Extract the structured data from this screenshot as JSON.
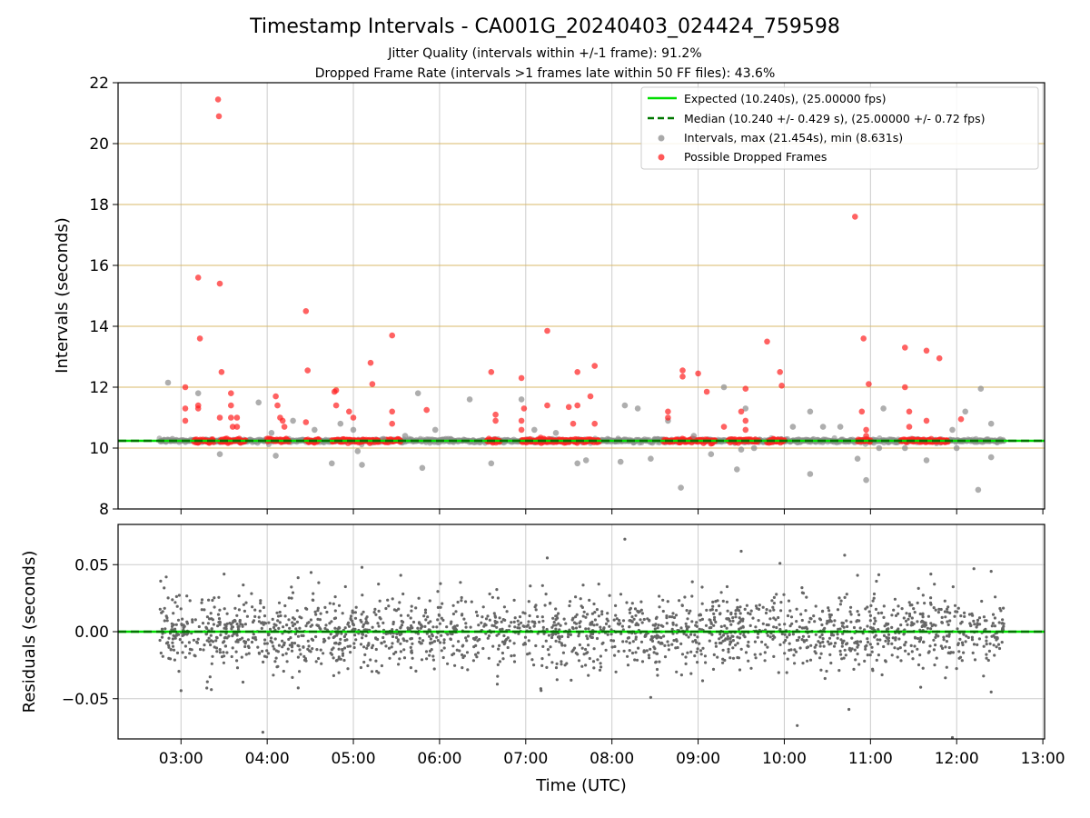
{
  "title": "Timestamp Intervals - CA001G_20240403_024424_759598",
  "subtitle_1": "Jitter Quality (intervals within +/-1 frame): 91.2%",
  "subtitle_2": "Dropped Frame Rate (intervals >1 frames late within 50 FF files): 43.6%",
  "colors": {
    "expected": "#00dd00",
    "median": "#007700",
    "intervals": "#8c8c8c",
    "dropped": "#ff2020",
    "frame_grid": "#d8b96a",
    "grid": "#cccccc",
    "residuals": "#666666"
  },
  "chart_data": [
    {
      "type": "scatter",
      "ylabel": "Intervals (seconds)",
      "ylim": [
        8,
        22
      ],
      "xlim": [
        2.27,
        13.02
      ],
      "yticks": [
        "8",
        "10",
        "12",
        "14",
        "16",
        "18",
        "20",
        "22"
      ],
      "grid": true,
      "legend_position": "top-right",
      "legend": [
        "Expected (10.240s), (25.00000 fps)",
        "Median (10.240 +/- 0.429 s), (25.00000 +/- 0.72 fps)",
        "Intervals, max (21.454s), min (8.631s)",
        "Possible Dropped Frames"
      ],
      "expected_value": 10.24,
      "median_value": 10.24,
      "time_range_hours": [
        2.75,
        12.55
      ],
      "frame_levels": [
        10.0,
        10.24,
        12.0,
        14.0,
        16.0,
        18.0,
        20.0,
        22.0
      ],
      "series": [
        {
          "name": "Intervals, max (21.454s), min (8.631s)",
          "points": [
            [
              2.8,
              10.25
            ],
            [
              2.85,
              12.15
            ],
            [
              2.9,
              10.3
            ],
            [
              3.2,
              11.8
            ],
            [
              3.45,
              9.8
            ],
            [
              3.9,
              11.5
            ],
            [
              4.05,
              10.5
            ],
            [
              4.1,
              9.75
            ],
            [
              4.3,
              10.9
            ],
            [
              4.55,
              10.6
            ],
            [
              4.75,
              9.5
            ],
            [
              4.85,
              10.8
            ],
            [
              5.0,
              10.6
            ],
            [
              5.05,
              9.9
            ],
            [
              5.1,
              9.45
            ],
            [
              5.35,
              10.3
            ],
            [
              5.6,
              10.4
            ],
            [
              5.75,
              11.8
            ],
            [
              5.8,
              9.35
            ],
            [
              5.95,
              10.6
            ],
            [
              6.1,
              10.3
            ],
            [
              6.35,
              11.6
            ],
            [
              6.6,
              9.5
            ],
            [
              6.95,
              11.6
            ],
            [
              7.1,
              10.6
            ],
            [
              7.35,
              10.5
            ],
            [
              7.6,
              9.5
            ],
            [
              7.7,
              9.6
            ],
            [
              7.95,
              10.3
            ],
            [
              8.1,
              9.55
            ],
            [
              8.15,
              11.4
            ],
            [
              8.3,
              11.3
            ],
            [
              8.45,
              9.65
            ],
            [
              8.65,
              10.9
            ],
            [
              8.8,
              8.7
            ],
            [
              8.95,
              10.4
            ],
            [
              9.15,
              9.8
            ],
            [
              9.3,
              12.0
            ],
            [
              9.45,
              9.3
            ],
            [
              9.5,
              9.95
            ],
            [
              9.55,
              11.3
            ],
            [
              9.65,
              10.0
            ],
            [
              10.1,
              10.7
            ],
            [
              10.3,
              9.15
            ],
            [
              10.3,
              11.2
            ],
            [
              10.45,
              10.7
            ],
            [
              10.65,
              10.7
            ],
            [
              10.85,
              9.65
            ],
            [
              10.95,
              8.95
            ],
            [
              11.1,
              10.0
            ],
            [
              11.15,
              11.3
            ],
            [
              11.4,
              10.0
            ],
            [
              11.65,
              9.6
            ],
            [
              11.95,
              10.6
            ],
            [
              12.0,
              10.0
            ],
            [
              12.1,
              11.2
            ],
            [
              12.25,
              8.63
            ],
            [
              12.28,
              11.95
            ],
            [
              12.4,
              9.7
            ],
            [
              12.4,
              10.8
            ]
          ]
        },
        {
          "name": "Possible Dropped Frames",
          "points": [
            [
              3.05,
              12.0
            ],
            [
              3.05,
              10.9
            ],
            [
              3.05,
              11.3
            ],
            [
              3.2,
              11.4
            ],
            [
              3.2,
              11.3
            ],
            [
              3.2,
              15.6
            ],
            [
              3.22,
              13.6
            ],
            [
              3.43,
              21.45
            ],
            [
              3.44,
              20.9
            ],
            [
              3.45,
              15.4
            ],
            [
              3.47,
              12.5
            ],
            [
              3.45,
              11.0
            ],
            [
              3.58,
              11.8
            ],
            [
              3.58,
              11.4
            ],
            [
              3.6,
              10.7
            ],
            [
              3.58,
              11.0
            ],
            [
              3.65,
              10.7
            ],
            [
              3.65,
              11.0
            ],
            [
              4.1,
              11.7
            ],
            [
              4.12,
              11.4
            ],
            [
              4.15,
              11.0
            ],
            [
              4.18,
              10.9
            ],
            [
              4.2,
              10.7
            ],
            [
              4.45,
              14.5
            ],
            [
              4.47,
              12.55
            ],
            [
              4.45,
              10.85
            ],
            [
              4.8,
              11.9
            ],
            [
              4.8,
              11.4
            ],
            [
              4.78,
              11.85
            ],
            [
              4.95,
              11.2
            ],
            [
              5.0,
              11.0
            ],
            [
              5.2,
              12.8
            ],
            [
              5.22,
              12.1
            ],
            [
              5.45,
              13.7
            ],
            [
              5.45,
              11.2
            ],
            [
              5.45,
              10.8
            ],
            [
              5.85,
              11.25
            ],
            [
              6.6,
              12.5
            ],
            [
              6.65,
              11.1
            ],
            [
              6.65,
              10.9
            ],
            [
              6.95,
              12.3
            ],
            [
              6.98,
              11.3
            ],
            [
              6.95,
              10.9
            ],
            [
              6.95,
              10.6
            ],
            [
              7.25,
              13.85
            ],
            [
              7.25,
              11.4
            ],
            [
              7.5,
              11.35
            ],
            [
              7.55,
              10.8
            ],
            [
              7.6,
              11.4
            ],
            [
              7.6,
              12.5
            ],
            [
              7.75,
              11.7
            ],
            [
              7.8,
              12.7
            ],
            [
              7.8,
              10.8
            ],
            [
              8.65,
              11.2
            ],
            [
              8.65,
              11.0
            ],
            [
              8.82,
              12.55
            ],
            [
              8.82,
              12.35
            ],
            [
              9.0,
              12.45
            ],
            [
              9.1,
              11.85
            ],
            [
              9.3,
              10.7
            ],
            [
              9.5,
              11.2
            ],
            [
              9.55,
              11.95
            ],
            [
              9.55,
              10.9
            ],
            [
              9.55,
              10.6
            ],
            [
              9.8,
              13.5
            ],
            [
              9.95,
              12.5
            ],
            [
              9.97,
              12.05
            ],
            [
              10.82,
              17.6
            ],
            [
              10.92,
              13.6
            ],
            [
              10.9,
              11.2
            ],
            [
              10.95,
              10.6
            ],
            [
              10.95,
              10.4
            ],
            [
              10.98,
              12.1
            ],
            [
              11.4,
              13.3
            ],
            [
              11.4,
              12.0
            ],
            [
              11.45,
              11.2
            ],
            [
              11.45,
              10.7
            ],
            [
              11.65,
              13.2
            ],
            [
              11.65,
              10.9
            ],
            [
              11.8,
              12.95
            ],
            [
              12.05,
              10.95
            ]
          ]
        }
      ]
    },
    {
      "type": "scatter",
      "xlabel": "Time (UTC)",
      "ylabel": "Residuals (seconds)",
      "ylim": [
        -0.08,
        0.08
      ],
      "xlim": [
        2.27,
        13.02
      ],
      "yticks": [
        "−0.05",
        "0.00",
        "0.05"
      ],
      "xticks": [
        "03:00",
        "04:00",
        "05:00",
        "06:00",
        "07:00",
        "08:00",
        "09:00",
        "10:00",
        "11:00",
        "12:00",
        "13:00"
      ],
      "grid": true,
      "zero_line": 0.0,
      "noise_std": 0.014,
      "point_count": 2000,
      "outliers": [
        [
          3.0,
          -0.044
        ],
        [
          3.3,
          -0.042
        ],
        [
          3.5,
          0.043
        ],
        [
          3.95,
          -0.075
        ],
        [
          5.1,
          0.048
        ],
        [
          5.55,
          0.042
        ],
        [
          7.25,
          0.055
        ],
        [
          8.15,
          0.069
        ],
        [
          8.45,
          -0.049
        ],
        [
          9.5,
          0.06
        ],
        [
          9.95,
          0.051
        ],
        [
          10.15,
          -0.07
        ],
        [
          10.7,
          0.057
        ],
        [
          10.75,
          -0.058
        ],
        [
          10.85,
          0.042
        ],
        [
          11.7,
          0.043
        ],
        [
          11.95,
          -0.079
        ],
        [
          12.2,
          0.047
        ],
        [
          12.4,
          -0.045
        ],
        [
          12.4,
          0.045
        ]
      ]
    }
  ]
}
